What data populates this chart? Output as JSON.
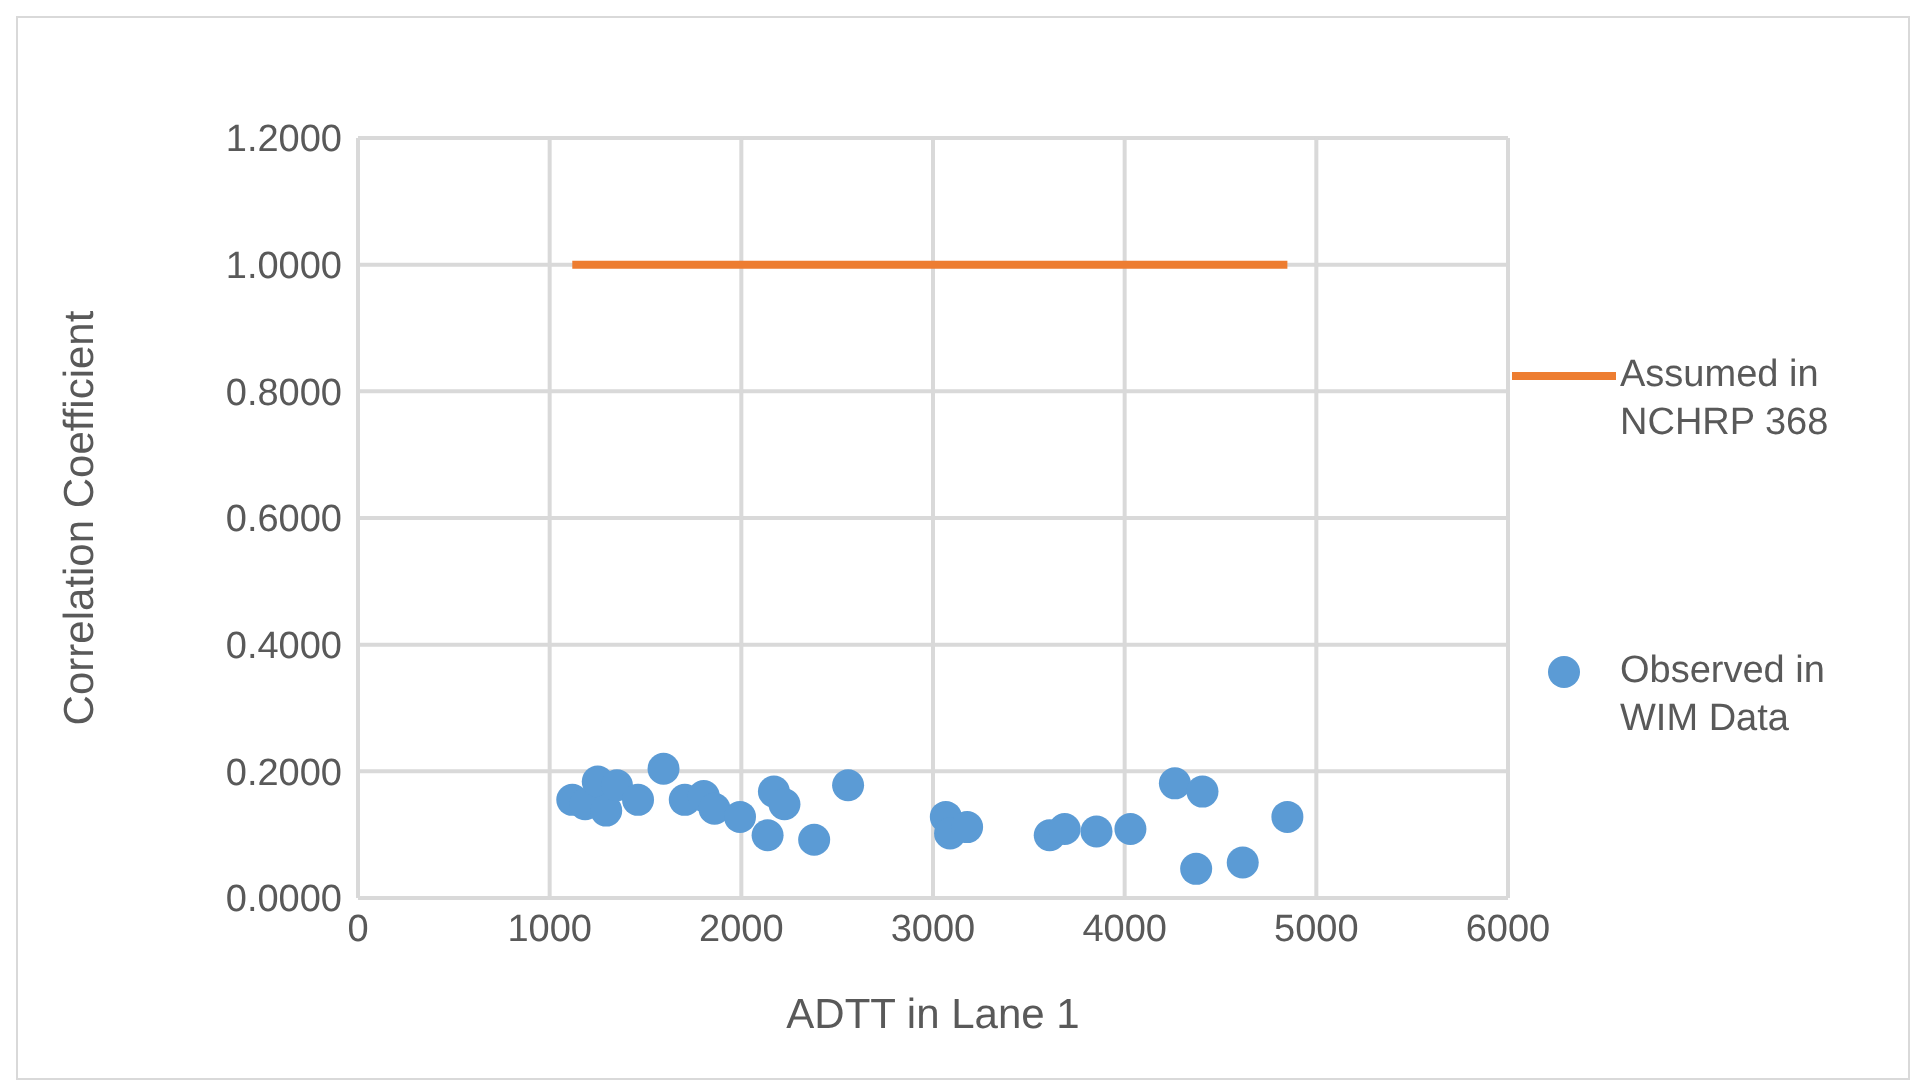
{
  "chart_data": {
    "type": "scatter",
    "xlabel": "ADTT in Lane 1",
    "ylabel": "Correlation Coefficient",
    "xlim": [
      0,
      6000
    ],
    "xticks": [
      0,
      1000,
      2000,
      3000,
      4000,
      5000,
      6000
    ],
    "ylim": [
      0,
      1.2
    ],
    "yticks": [
      {
        "value": 0,
        "label": "0.0000"
      },
      {
        "value": 0.2,
        "label": "0.2000"
      },
      {
        "value": 0.4,
        "label": "0.4000"
      },
      {
        "value": 0.6,
        "label": "0.6000"
      },
      {
        "value": 0.8,
        "label": "0.8000"
      },
      {
        "value": 1.0,
        "label": "1.0000"
      },
      {
        "value": 1.2,
        "label": "1.2000"
      }
    ],
    "grid": true,
    "legend": "right",
    "series": [
      {
        "name": "Assumed in NCHRP 368",
        "type": "line",
        "color": "#ed7d31",
        "marker": "none",
        "x": [
          1118,
          4849
        ],
        "values": [
          1.0,
          1.0
        ]
      },
      {
        "name": "Observed in WIM Data",
        "type": "scatter",
        "color": "#5b9bd5",
        "marker": "circle",
        "x": [
          1118,
          1185,
          1251,
          1295,
          1351,
          1461,
          1594,
          1705,
          1804,
          1860,
          1993,
          2137,
          2170,
          2225,
          2380,
          2557,
          3067,
          3089,
          3178,
          3609,
          3687,
          3853,
          4030,
          4262,
          4406,
          4373,
          4616,
          4849
        ],
        "values": [
          0.155,
          0.148,
          0.184,
          0.138,
          0.178,
          0.155,
          0.204,
          0.155,
          0.161,
          0.141,
          0.128,
          0.099,
          0.168,
          0.148,
          0.092,
          0.178,
          0.128,
          0.102,
          0.112,
          0.099,
          0.109,
          0.105,
          0.109,
          0.181,
          0.168,
          0.046,
          0.056,
          0.128
        ]
      }
    ]
  }
}
